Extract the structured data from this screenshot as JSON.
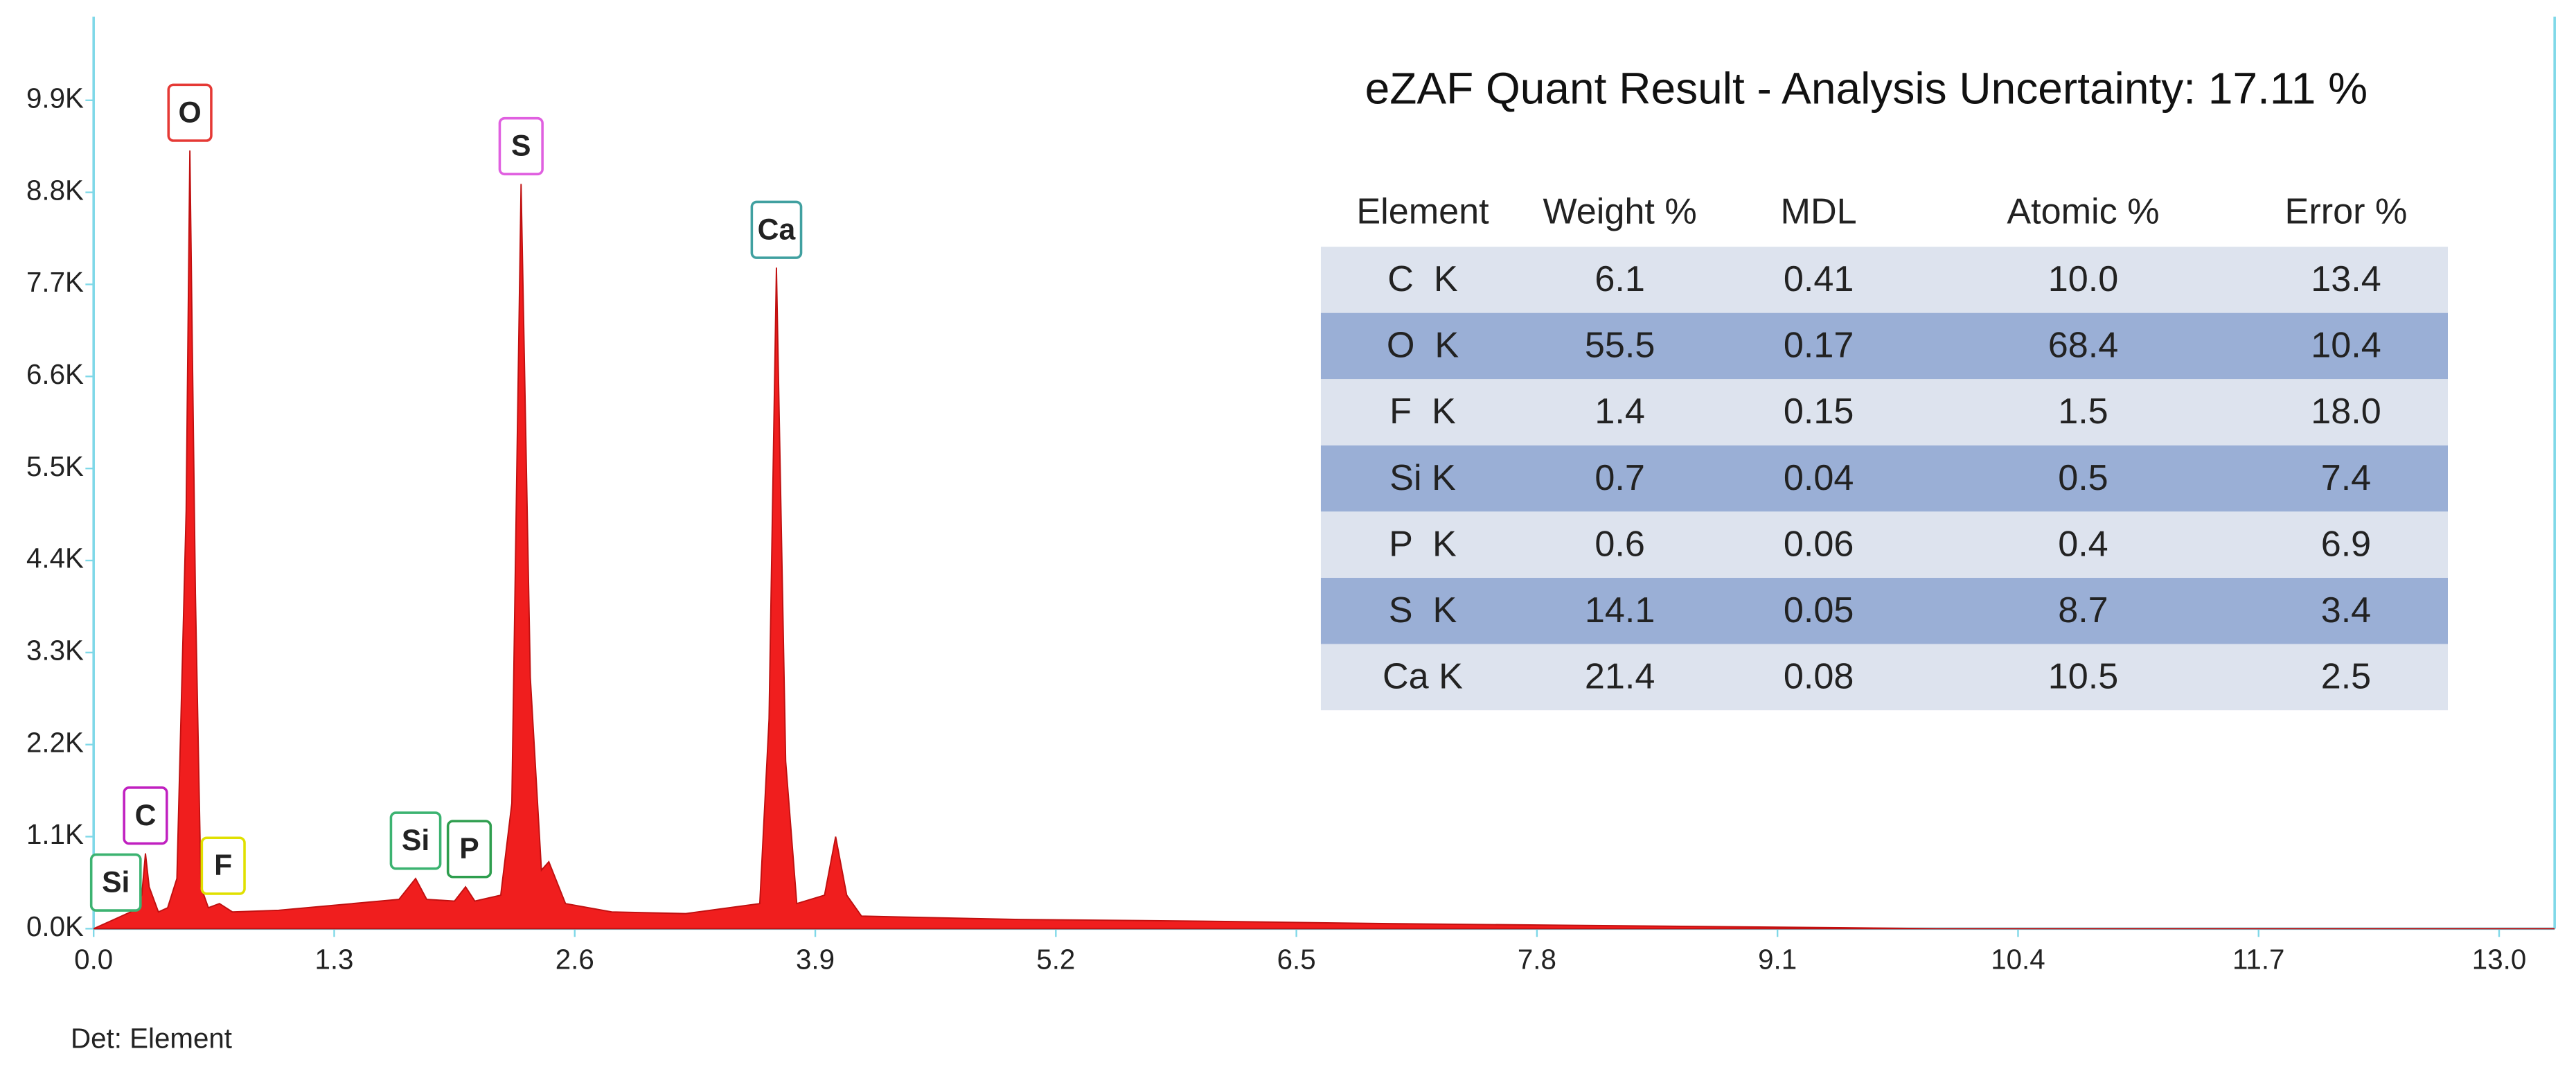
{
  "chart_data": {
    "type": "area",
    "color": "#f01e1e",
    "x": [
      0,
      0.1,
      0.2,
      0.26,
      0.28,
      0.3,
      0.35,
      0.4,
      0.45,
      0.5,
      0.52,
      0.55,
      0.58,
      0.62,
      0.68,
      0.75,
      1.0,
      1.3,
      1.5,
      1.65,
      1.74,
      1.8,
      1.95,
      2.01,
      2.06,
      2.2,
      2.26,
      2.31,
      2.36,
      2.42,
      2.46,
      2.55,
      2.8,
      3.2,
      3.6,
      3.65,
      3.69,
      3.74,
      3.8,
      3.95,
      4.01,
      4.07,
      4.15,
      5.0,
      6.0,
      7.0,
      8.0,
      9.0,
      10.0,
      13.3
    ],
    "values": [
      0,
      100,
      200,
      400,
      900,
      500,
      200,
      250,
      600,
      5000,
      9300,
      4000,
      500,
      250,
      300,
      200,
      220,
      280,
      320,
      350,
      600,
      350,
      330,
      500,
      330,
      400,
      1500,
      8900,
      3000,
      700,
      800,
      300,
      200,
      180,
      300,
      2500,
      7900,
      2000,
      300,
      400,
      1100,
      400,
      150,
      110,
      90,
      60,
      40,
      20,
      0,
      0
    ],
    "xlim": [
      0,
      13.3
    ],
    "ylim": [
      0,
      10900
    ],
    "xticks": [
      {
        "value": 0,
        "label": "0.0"
      },
      1.3,
      2.6,
      3.9,
      5.2,
      6.5,
      7.8,
      9.1,
      10.4,
      11.7,
      {
        "value": 13,
        "label": "13.0"
      }
    ],
    "yticks": [
      {
        "value": 0,
        "label": "0.0K"
      },
      {
        "value": 1100,
        "label": "1.1K"
      },
      {
        "value": 2200,
        "label": "2.2K"
      },
      {
        "value": 3300,
        "label": "3.3K"
      },
      {
        "value": 4400,
        "label": "4.4K"
      },
      {
        "value": 5500,
        "label": "5.5K"
      },
      {
        "value": 6600,
        "label": "6.6K"
      },
      {
        "value": 7700,
        "label": "7.7K"
      },
      {
        "value": 8800,
        "label": "8.8K"
      },
      {
        "value": 9900,
        "label": "9.9K"
      }
    ],
    "peak_labels": [
      {
        "label": "Si",
        "x": 0.12,
        "color": "#3cb371"
      },
      {
        "label": "C",
        "x": 0.28,
        "color": "#c020c0"
      },
      {
        "label": "O",
        "x": 0.52,
        "color": "#e53935"
      },
      {
        "label": "F",
        "x": 0.7,
        "color": "#e0e000"
      },
      {
        "label": "Si",
        "x": 1.74,
        "color": "#3cb371"
      },
      {
        "label": "P",
        "x": 2.03,
        "color": "#2e9e4e"
      },
      {
        "label": "S",
        "x": 2.31,
        "color": "#e060e0"
      },
      {
        "label": "Ca",
        "x": 3.69,
        "color": "#40a0a0"
      }
    ],
    "footer": "Det: Element"
  },
  "table": {
    "title": "eZAF Quant Result - Analysis Uncertainty: 17.11 %",
    "columns": [
      "Element",
      "Weight %",
      "MDL",
      "Atomic %",
      "Error %"
    ],
    "rows": [
      [
        "C  K",
        "6.1",
        "0.41",
        "10.0",
        "13.4"
      ],
      [
        "O  K",
        "55.5",
        "0.17",
        "68.4",
        "10.4"
      ],
      [
        "F  K",
        "1.4",
        "0.15",
        "1.5",
        "18.0"
      ],
      [
        "Si K",
        "0.7",
        "0.04",
        "0.5",
        "7.4"
      ],
      [
        "P  K",
        "0.6",
        "0.06",
        "0.4",
        "6.9"
      ],
      [
        "S  K",
        "14.1",
        "0.05",
        "8.7",
        "3.4"
      ],
      [
        "Ca K",
        "21.4",
        "0.08",
        "10.5",
        "2.5"
      ]
    ]
  }
}
